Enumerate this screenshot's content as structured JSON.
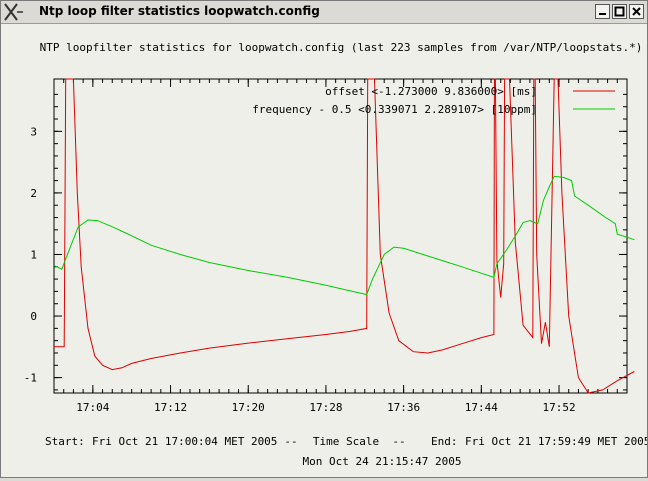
{
  "window": {
    "title": "Ntp loop filter statistics loopwatch.config",
    "buttons": [
      "minimize",
      "maximize",
      "close"
    ]
  },
  "colors": {
    "offset": "#dd0000",
    "frequency": "#00cc00",
    "background": "#efefe9"
  },
  "chart_data": {
    "type": "line",
    "title": "NTP loopfilter statistics for loopwatch.config  (last 223 samples from /var/NTP/loopstats.*)",
    "x_ticks": [
      "17:04",
      "17:12",
      "17:20",
      "17:28",
      "17:36",
      "17:44",
      "17:52"
    ],
    "y_ticks": [
      "3",
      "2",
      "1",
      "0",
      "-1"
    ],
    "xlim": [
      "17:00",
      "17:59"
    ],
    "ylim": [
      -1.25,
      3.85
    ],
    "legend_position": "top-right",
    "series": [
      {
        "name": "offset <-1.273000 9.836000>  [ms]",
        "color": "#dd0000",
        "points": [
          [
            0.0,
            -0.5
          ],
          [
            0.5,
            -0.5
          ],
          [
            1.05,
            -0.5
          ],
          [
            1.2,
            3.85
          ],
          [
            2.0,
            3.85
          ],
          [
            2.4,
            2.0
          ],
          [
            2.8,
            0.8
          ],
          [
            3.5,
            -0.2
          ],
          [
            4.2,
            -0.65
          ],
          [
            5.0,
            -0.8
          ],
          [
            6.0,
            -0.87
          ],
          [
            7.0,
            -0.84
          ],
          [
            8.0,
            -0.77
          ],
          [
            10.0,
            -0.69
          ],
          [
            13.0,
            -0.6
          ],
          [
            16.0,
            -0.52
          ],
          [
            20.0,
            -0.44
          ],
          [
            24.0,
            -0.37
          ],
          [
            28.0,
            -0.3
          ],
          [
            30.5,
            -0.25
          ],
          [
            32.2,
            -0.2
          ],
          [
            32.3,
            3.85
          ],
          [
            33.0,
            3.85
          ],
          [
            33.6,
            1.0
          ],
          [
            34.5,
            0.05
          ],
          [
            35.5,
            -0.4
          ],
          [
            37.0,
            -0.58
          ],
          [
            38.5,
            -0.6
          ],
          [
            40.0,
            -0.55
          ],
          [
            42.0,
            -0.45
          ],
          [
            44.0,
            -0.35
          ],
          [
            45.3,
            -0.3
          ],
          [
            45.35,
            3.85
          ],
          [
            45.45,
            3.85
          ],
          [
            45.6,
            0.9
          ],
          [
            46.0,
            0.3
          ],
          [
            46.3,
            0.85
          ],
          [
            46.4,
            3.85
          ],
          [
            46.9,
            3.85
          ],
          [
            47.5,
            1.2
          ],
          [
            48.3,
            -0.15
          ],
          [
            49.3,
            -0.35
          ],
          [
            49.4,
            3.85
          ],
          [
            49.55,
            3.85
          ],
          [
            49.7,
            1.0
          ],
          [
            50.2,
            -0.45
          ],
          [
            50.6,
            -0.1
          ],
          [
            51.0,
            -0.5
          ],
          [
            51.5,
            3.85
          ],
          [
            51.9,
            3.85
          ],
          [
            52.3,
            2.0
          ],
          [
            53.0,
            0.0
          ],
          [
            54.0,
            -1.0
          ],
          [
            55.0,
            -1.25
          ],
          [
            56.5,
            -1.2
          ],
          [
            58.0,
            -1.05
          ],
          [
            59.75,
            -0.9
          ]
        ]
      },
      {
        "name": "frequency - 0.5 <0.339071 2.289107> [10ppm]",
        "color": "#00cc00",
        "points": [
          [
            0.0,
            0.82
          ],
          [
            0.8,
            0.76
          ],
          [
            1.5,
            1.05
          ],
          [
            2.5,
            1.45
          ],
          [
            3.5,
            1.56
          ],
          [
            4.5,
            1.55
          ],
          [
            6.0,
            1.45
          ],
          [
            7.5,
            1.34
          ],
          [
            10.0,
            1.15
          ],
          [
            13.0,
            1.0
          ],
          [
            16.0,
            0.87
          ],
          [
            20.0,
            0.74
          ],
          [
            24.0,
            0.63
          ],
          [
            28.0,
            0.5
          ],
          [
            31.0,
            0.39
          ],
          [
            32.2,
            0.35
          ],
          [
            32.8,
            0.6
          ],
          [
            34.0,
            1.0
          ],
          [
            35.0,
            1.12
          ],
          [
            36.0,
            1.1
          ],
          [
            38.0,
            1.0
          ],
          [
            40.0,
            0.9
          ],
          [
            42.0,
            0.8
          ],
          [
            45.3,
            0.63
          ],
          [
            45.6,
            0.85
          ],
          [
            46.5,
            1.05
          ],
          [
            47.5,
            1.3
          ],
          [
            48.3,
            1.52
          ],
          [
            49.0,
            1.55
          ],
          [
            49.8,
            1.5
          ],
          [
            50.4,
            1.88
          ],
          [
            51.0,
            2.1
          ],
          [
            51.5,
            2.27
          ],
          [
            52.5,
            2.25
          ],
          [
            53.3,
            2.2
          ],
          [
            53.6,
            1.95
          ],
          [
            55.0,
            1.8
          ],
          [
            56.8,
            1.6
          ],
          [
            57.8,
            1.5
          ],
          [
            58.0,
            1.33
          ],
          [
            59.0,
            1.28
          ],
          [
            59.75,
            1.24
          ]
        ]
      }
    ]
  },
  "footer": {
    "start_label": "Start:",
    "start_value": "Fri Oct 21 17:00:04 MET 2005",
    "sep1": "--",
    "scale_label": "Time Scale",
    "sep2": "--",
    "end_label": "End:",
    "end_value": "Fri Oct 21 17:59:49 MET 2005",
    "generated": "Mon Oct 24 21:15:47 2005"
  }
}
